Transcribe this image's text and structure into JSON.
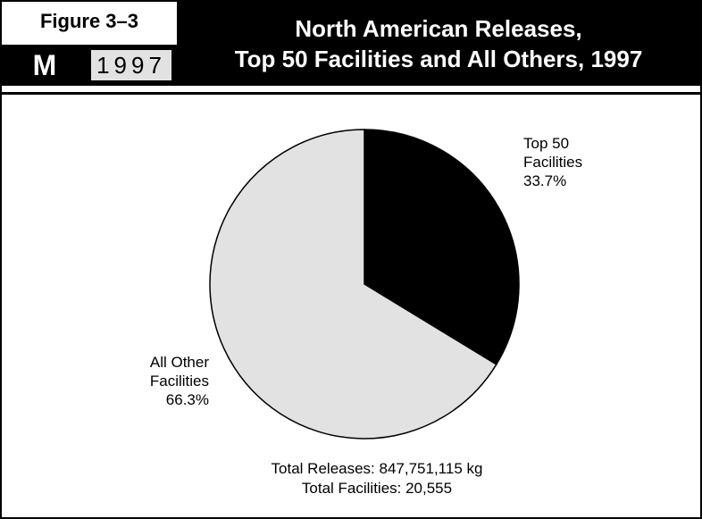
{
  "figure": {
    "label": "Figure 3–3",
    "badge_letter": "M",
    "badge_year": "1997"
  },
  "title": {
    "line1": "North American Releases,",
    "line2": "Top 50 Facilities and All Others, 1997"
  },
  "chart_data": {
    "type": "pie",
    "title": "North American Releases, Top 50 Facilities and All Others, 1997",
    "slices": [
      {
        "label_lines": [
          "Top 50",
          "Facilities"
        ],
        "percent_label": "33.7%",
        "value": 33.7,
        "color": "#000000"
      },
      {
        "label_lines": [
          "All Other",
          "Facilities"
        ],
        "percent_label": "66.3%",
        "value": 66.3,
        "color": "#e2e2e2"
      }
    ],
    "annotations": [
      "Total Releases: 847,751,115 kg",
      "Total Facilities: 20,555"
    ]
  },
  "colors": {
    "header_bg": "#000000",
    "year_box_bg": "#e2e2e2",
    "slice_outline": "#000000"
  }
}
